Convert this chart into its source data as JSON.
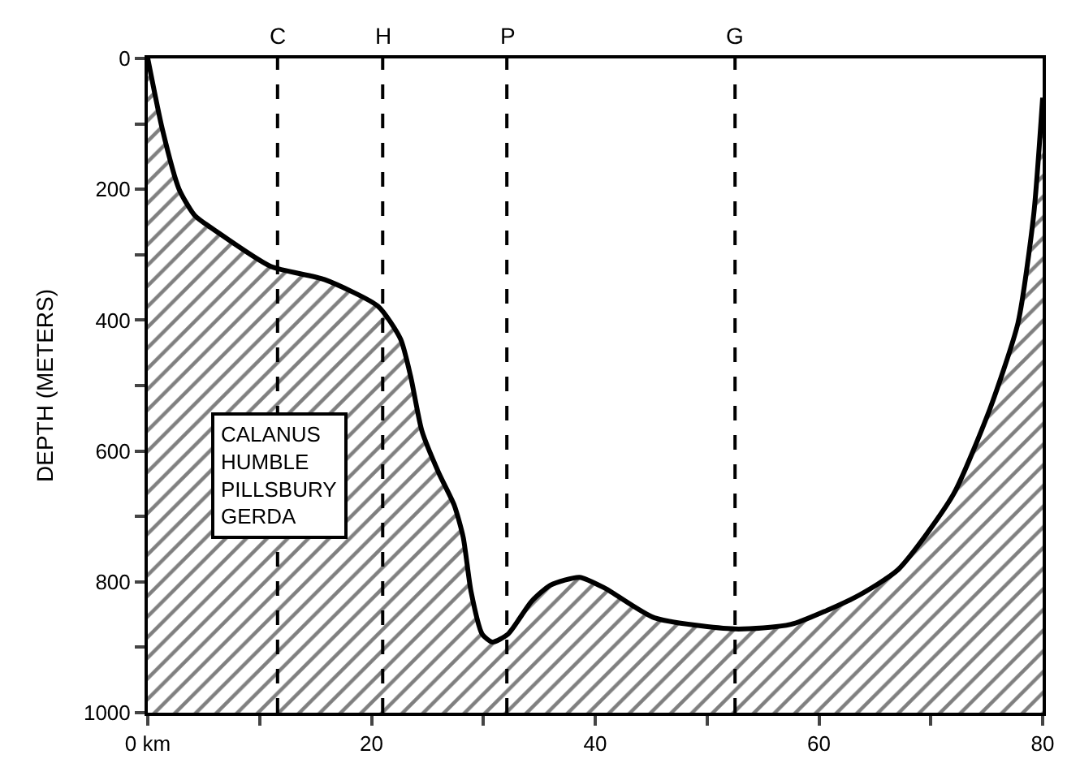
{
  "chart_data": {
    "type": "area",
    "ylabel": "DEPTH (METERS)",
    "x": [
      0,
      1.3,
      2.8,
      4.2,
      6.1,
      11.0,
      15.8,
      20.6,
      22.6,
      23.5,
      24.5,
      26.0,
      27.4,
      28.2,
      28.9,
      29.9,
      30.8,
      32.2,
      34.3,
      36.0,
      38.6,
      40.9,
      45.3,
      52.5,
      57.5,
      63.3,
      67.1,
      72.0,
      75.3,
      77.8,
      79.2,
      80
    ],
    "series": [
      {
        "color": "#000000",
        "values": [
          0,
          108,
          200,
          240,
          264,
          318,
          338,
          379,
          429,
          486,
          569,
          633,
          683,
          732,
          815,
          880,
          892,
          880,
          830,
          805,
          793,
          810,
          855,
          872,
          865,
          823,
          781,
          667,
          535,
          404,
          239,
          60
        ]
      }
    ],
    "xlim": [
      0,
      80
    ],
    "xticks": [
      {
        "value": 0,
        "label": "0 km"
      },
      {
        "value": 10,
        "label": null
      },
      20,
      {
        "value": 30,
        "label": null
      },
      40,
      {
        "value": 50,
        "label": null
      },
      60,
      {
        "value": 70,
        "label": null
      },
      80
    ],
    "ylim": [
      1000,
      0
    ],
    "yticks": [
      0,
      {
        "value": 100,
        "label": null
      },
      200,
      {
        "value": 300,
        "label": null
      },
      400,
      {
        "value": 500,
        "label": null
      },
      600,
      {
        "value": 700,
        "label": null
      },
      800,
      {
        "value": 900,
        "label": null
      },
      1000
    ],
    "ref_lines": [
      {
        "axis": "x",
        "value": 11.6,
        "label": "C",
        "line_style": "dashed"
      },
      {
        "axis": "x",
        "value": 21.0,
        "label": "H",
        "line_style": "dashed"
      },
      {
        "axis": "x",
        "value": 32.1,
        "label": "P",
        "line_style": "dashed"
      },
      {
        "axis": "x",
        "value": 52.5,
        "label": "G",
        "line_style": "dashed"
      }
    ],
    "annotations": [
      "CALANUS\nHUMBLE\nPILLSBURY\nGERDA"
    ]
  }
}
